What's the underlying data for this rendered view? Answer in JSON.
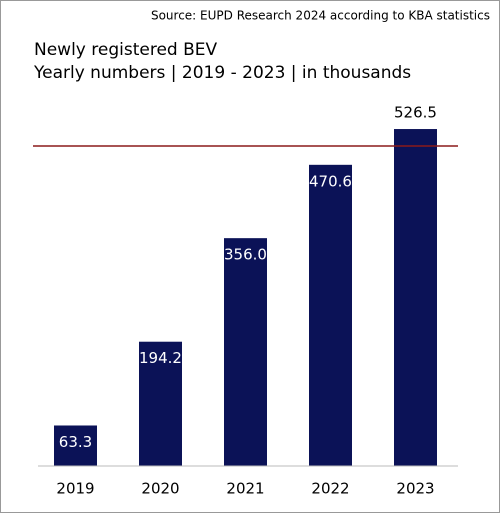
{
  "chart_data": {
    "type": "bar",
    "source": "Source: EUPD Research 2024 according to KBA statistics",
    "title": "Newly registered BEV",
    "subtitle": "Yearly numbers | 2019 - 2023 | in thousands",
    "categories": [
      "2019",
      "2020",
      "2021",
      "2022",
      "2023"
    ],
    "values": [
      63.3,
      194.2,
      356.0,
      470.6,
      526.5
    ],
    "value_labels": [
      "63.3",
      "194.2",
      "356.0",
      "470.6",
      "526.5"
    ],
    "color": "#0b1257",
    "ylim": [
      0,
      550
    ],
    "reference_line": {
      "value": 500,
      "color": "#8b1a1a"
    }
  }
}
